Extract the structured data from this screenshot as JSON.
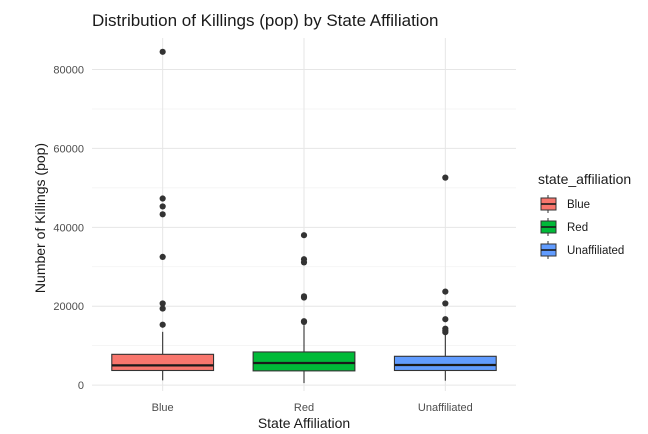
{
  "chart_data": {
    "type": "box",
    "title": "Distribution of Killings (pop) by State Affiliation",
    "xlabel": "State Affiliation",
    "ylabel": "Number of Killings (pop)",
    "ylim": [
      -1500,
      88000
    ],
    "yticks": [
      0,
      20000,
      40000,
      60000,
      80000
    ],
    "grid": true,
    "legend": {
      "title": "state_affiliation",
      "placement": "right",
      "entries": [
        "Blue",
        "Red",
        "Unaffiliated"
      ]
    },
    "categories": [
      "Blue",
      "Red",
      "Unaffiliated"
    ],
    "series": [
      {
        "name": "Blue",
        "color": "#F8766D",
        "min": 1200,
        "q1": 3700,
        "median": 5000,
        "q3": 7800,
        "max": 13500,
        "outliers": [
          84500,
          47300,
          45300,
          43300,
          32500,
          20700,
          19400,
          15300
        ]
      },
      {
        "name": "Red",
        "color": "#00BA38",
        "min": 500,
        "q1": 3600,
        "median": 5600,
        "q3": 8400,
        "max": 15200,
        "outliers": [
          38000,
          31900,
          31100,
          22500,
          22200,
          16200,
          16000
        ]
      },
      {
        "name": "Unaffiliated",
        "color": "#619CFF",
        "min": 1100,
        "q1": 3700,
        "median": 5100,
        "q3": 7300,
        "max": 12900,
        "outliers": [
          52600,
          23700,
          20700,
          16700,
          14300,
          13800,
          13400
        ]
      }
    ]
  }
}
